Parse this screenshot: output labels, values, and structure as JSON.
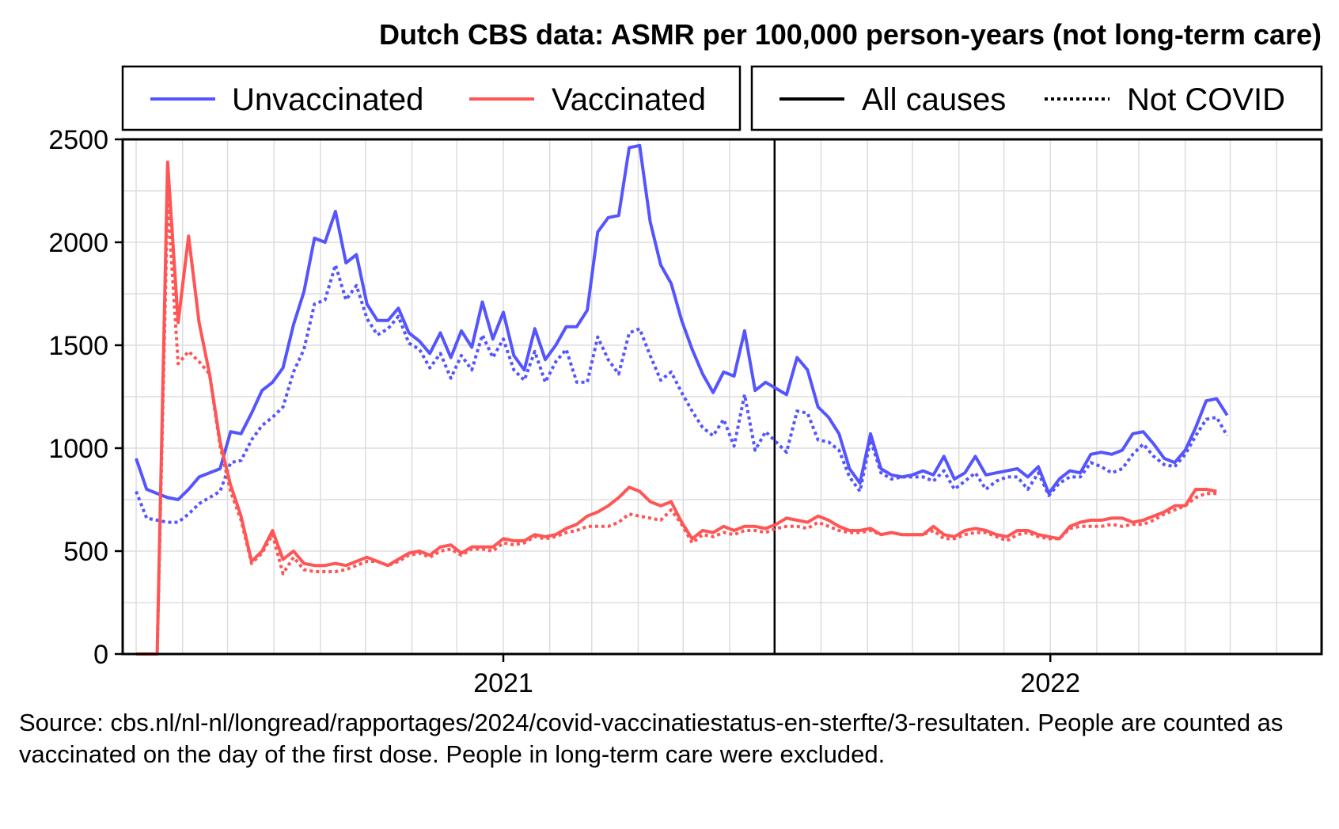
{
  "chart_data": {
    "type": "line",
    "title": "Dutch CBS data: ASMR per 100,000 person-years (not long-term care)",
    "xlabel": "",
    "ylabel": "",
    "ylim": [
      0,
      2500
    ],
    "y_ticks": [
      "0",
      "500",
      "1000",
      "1500",
      "2000",
      "2500"
    ],
    "x_ticks": [
      {
        "label": "2021",
        "date": "2021-01-01"
      },
      {
        "label": "2022",
        "date": "2022-01-01"
      }
    ],
    "xlim": [
      "2020-04-22",
      "2022-07-01"
    ],
    "vertical_line_date": "2021-07-01",
    "grid": true,
    "legend_left": {
      "items": [
        "Unvaccinated",
        "Vaccinated"
      ]
    },
    "legend_right": {
      "items": [
        "All causes",
        "Not COVID"
      ]
    },
    "colors": {
      "Unvaccinated": "#5555ff",
      "Vaccinated": "#ff5555",
      "grid": "#dddddd",
      "axis": "#000000"
    },
    "line_styles": {
      "All causes": "solid",
      "Not COVID": "dotted"
    },
    "start_date": "2020-05-01",
    "week_interval_days": 7,
    "series": [
      {
        "name": "Unvaccinated",
        "cause": "All causes",
        "values": [
          950,
          800,
          780,
          760,
          750,
          800,
          860,
          880,
          900,
          1080,
          1070,
          1170,
          1280,
          1320,
          1390,
          1600,
          1760,
          2020,
          2000,
          2150,
          1900,
          1940,
          1700,
          1620,
          1620,
          1680,
          1560,
          1520,
          1460,
          1560,
          1440,
          1570,
          1490,
          1710,
          1530,
          1660,
          1450,
          1380,
          1580,
          1430,
          1500,
          1590,
          1590,
          1670,
          2050,
          2120,
          2130,
          2460,
          2470,
          2100,
          1890,
          1800,
          1620,
          1480,
          1360,
          1270,
          1370,
          1350,
          1570,
          1280,
          1320,
          1290,
          1260,
          1440,
          1380,
          1200,
          1150,
          1070,
          900,
          830,
          1070,
          900,
          870,
          860,
          870,
          890,
          870,
          960,
          850,
          880,
          960,
          870,
          880,
          890,
          900,
          860,
          910,
          780,
          850,
          890,
          880,
          970,
          980,
          970,
          990,
          1070,
          1080,
          1020,
          950,
          930,
          990,
          1100,
          1230,
          1240,
          1160
        ]
      },
      {
        "name": "Unvaccinated",
        "cause": "Not COVID",
        "values": [
          790,
          660,
          650,
          640,
          640,
          680,
          730,
          760,
          790,
          930,
          940,
          1040,
          1110,
          1150,
          1200,
          1370,
          1480,
          1700,
          1720,
          1890,
          1720,
          1790,
          1630,
          1550,
          1580,
          1640,
          1510,
          1480,
          1390,
          1460,
          1340,
          1450,
          1380,
          1550,
          1440,
          1530,
          1380,
          1330,
          1470,
          1320,
          1420,
          1480,
          1320,
          1320,
          1540,
          1430,
          1360,
          1560,
          1580,
          1450,
          1330,
          1370,
          1270,
          1180,
          1100,
          1060,
          1140,
          1010,
          1260,
          990,
          1080,
          1030,
          980,
          1180,
          1170,
          1040,
          1030,
          990,
          860,
          790,
          1040,
          880,
          850,
          860,
          860,
          860,
          840,
          890,
          800,
          840,
          880,
          800,
          840,
          860,
          860,
          800,
          880,
          770,
          830,
          860,
          860,
          930,
          910,
          880,
          900,
          970,
          1020,
          960,
          920,
          910,
          970,
          1060,
          1140,
          1150,
          1060
        ]
      },
      {
        "name": "Vaccinated",
        "cause": "All causes",
        "values": [
          0,
          0,
          0,
          2390,
          1610,
          2030,
          1610,
          1360,
          1030,
          820,
          670,
          450,
          500,
          600,
          460,
          500,
          440,
          430,
          430,
          440,
          430,
          450,
          470,
          450,
          430,
          460,
          490,
          500,
          480,
          520,
          530,
          490,
          520,
          520,
          520,
          560,
          550,
          550,
          580,
          570,
          580,
          610,
          630,
          670,
          690,
          720,
          760,
          810,
          790,
          740,
          720,
          740,
          640,
          560,
          600,
          590,
          620,
          600,
          620,
          620,
          610,
          630,
          660,
          650,
          640,
          670,
          650,
          620,
          600,
          600,
          610,
          580,
          590,
          580,
          580,
          580,
          620,
          580,
          570,
          600,
          610,
          600,
          580,
          570,
          600,
          600,
          580,
          570,
          560,
          620,
          640,
          650,
          650,
          660,
          660,
          640,
          650,
          670,
          690,
          720,
          720,
          800,
          800,
          790
        ]
      },
      {
        "name": "Vaccinated",
        "cause": "Not COVID",
        "values": [
          0,
          0,
          0,
          2210,
          1410,
          1470,
          1420,
          1360,
          1010,
          790,
          650,
          440,
          490,
          580,
          390,
          470,
          410,
          400,
          400,
          400,
          410,
          430,
          450,
          450,
          430,
          450,
          480,
          490,
          470,
          500,
          510,
          480,
          510,
          510,
          500,
          540,
          530,
          540,
          570,
          560,
          570,
          590,
          600,
          620,
          620,
          620,
          640,
          680,
          670,
          660,
          650,
          700,
          630,
          540,
          580,
          570,
          590,
          580,
          600,
          600,
          590,
          610,
          620,
          620,
          610,
          640,
          620,
          600,
          590,
          590,
          600,
          580,
          590,
          580,
          580,
          580,
          600,
          560,
          560,
          580,
          590,
          590,
          570,
          550,
          580,
          590,
          570,
          560,
          560,
          610,
          620,
          620,
          620,
          630,
          620,
          630,
          630,
          650,
          680,
          700,
          720,
          760,
          780,
          780
        ]
      }
    ]
  },
  "caption_text": "Source: cbs.nl/nl-nl/longread/rapportages/2024/covid-vaccinatiestatus-en-sterfte/3-resultaten. People are counted as vaccinated on the day of the first dose. People in long-term care were excluded."
}
